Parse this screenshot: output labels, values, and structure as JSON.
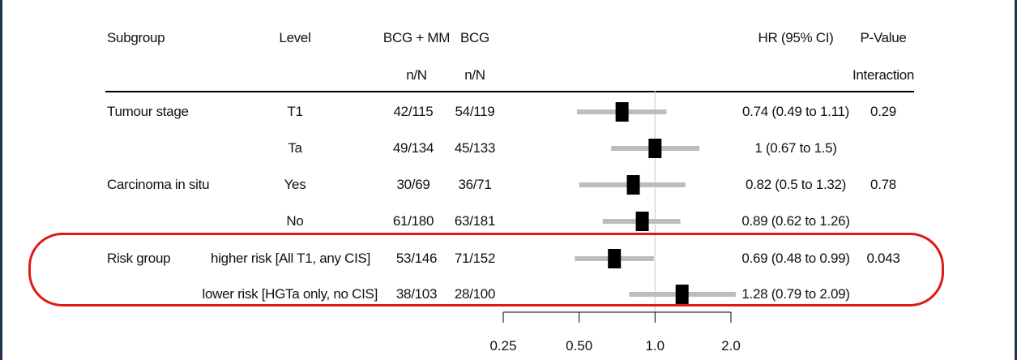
{
  "headers": {
    "subgroup": "Subgroup",
    "level": "Level",
    "bcg_mm": "BCG + MM",
    "bcg": "BCG",
    "bcg_mm_sub": "n/N",
    "bcg_sub": "n/N",
    "hr": "HR (95% CI)",
    "pvalue": "P-Value",
    "pvalue_sub": "Interaction"
  },
  "rows": [
    {
      "subgroup": "Tumour stage",
      "level": "T1",
      "bcg_mm": "42/115",
      "bcg": "54/119",
      "hr_text": "0.74 (0.49 to 1.11)",
      "pvalue": "0.29"
    },
    {
      "subgroup": "",
      "level": "Ta",
      "bcg_mm": "49/134",
      "bcg": "45/133",
      "hr_text": "1 (0.67 to 1.5)",
      "pvalue": ""
    },
    {
      "subgroup": "Carcinoma in situ",
      "level": "Yes",
      "bcg_mm": "30/69",
      "bcg": "36/71",
      "hr_text": "0.82 (0.5 to 1.32)",
      "pvalue": "0.78"
    },
    {
      "subgroup": "",
      "level": "No",
      "bcg_mm": "61/180",
      "bcg": "63/181",
      "hr_text": "0.89 (0.62 to 1.26)",
      "pvalue": ""
    },
    {
      "subgroup": "Risk group",
      "level": "higher risk [All T1, any CIS]",
      "bcg_mm": "53/146",
      "bcg": "71/152",
      "hr_text": "0.69 (0.48 to 0.99)",
      "pvalue": "0.043"
    },
    {
      "subgroup": "",
      "level": "lower risk [HGTa only, no CIS]",
      "bcg_mm": "38/103",
      "bcg": "28/100",
      "hr_text": "1.28 (0.79 to 2.09)",
      "pvalue": ""
    }
  ],
  "colors": {
    "ci_line": "#bdbdbd",
    "point": "#000000",
    "highlight": "#e01818",
    "ref_line": "#cccccc"
  },
  "chart_data": {
    "type": "forest",
    "xscale": "log",
    "xlim": [
      0.25,
      2.0
    ],
    "xticks": [
      0.25,
      0.5,
      1.0,
      2.0
    ],
    "xtick_labels": [
      "0.25",
      "0.50",
      "1.0",
      "2.0"
    ],
    "reference_line": 1.0,
    "points": [
      {
        "hr": 0.74,
        "lower": 0.49,
        "upper": 1.11
      },
      {
        "hr": 1.0,
        "lower": 0.67,
        "upper": 1.5
      },
      {
        "hr": 0.82,
        "lower": 0.5,
        "upper": 1.32
      },
      {
        "hr": 0.89,
        "lower": 0.62,
        "upper": 1.26
      },
      {
        "hr": 0.69,
        "lower": 0.48,
        "upper": 0.99
      },
      {
        "hr": 1.28,
        "lower": 0.79,
        "upper": 2.09
      }
    ]
  }
}
